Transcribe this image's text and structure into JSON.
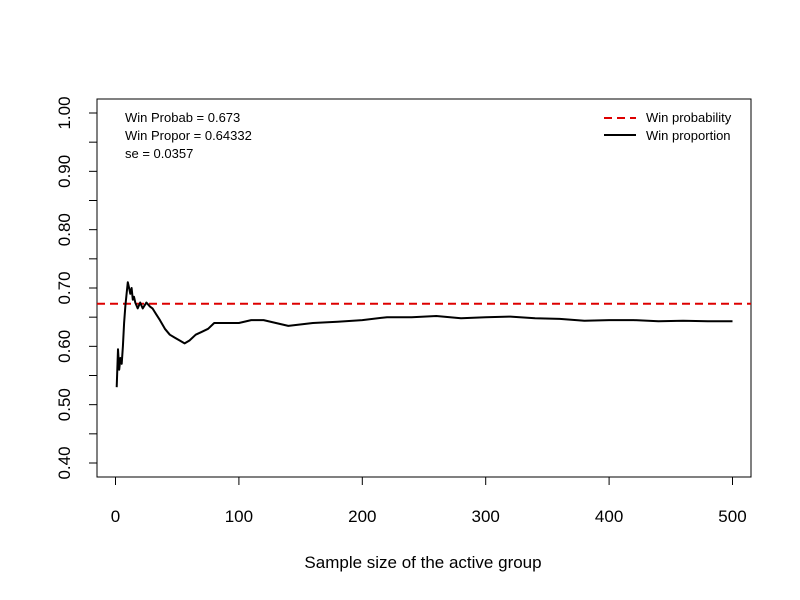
{
  "chart_data": {
    "type": "line",
    "xlabel": "Sample size of the active group",
    "ylabel": "",
    "xlim": [
      -15,
      515
    ],
    "ylim": [
      0.376,
      1.024
    ],
    "x_ticks": [
      0,
      100,
      200,
      300,
      400,
      500
    ],
    "x_tick_labels": [
      "0",
      "100",
      "200",
      "300",
      "400",
      "500"
    ],
    "y_ticks": [
      0.4,
      0.45,
      0.5,
      0.55,
      0.6,
      0.65,
      0.7,
      0.75,
      0.8,
      0.85,
      0.9,
      0.95,
      1.0
    ],
    "y_tick_labels": [
      "0.40",
      "",
      "0.50",
      "",
      "0.60",
      "",
      "0.70",
      "",
      "0.80",
      "",
      "0.90",
      "",
      "1.00"
    ],
    "grid": false,
    "legend_position": "top-right",
    "annotations": [
      "Win Probab = 0.673",
      "Win Propor = 0.64332",
      "se = 0.0357"
    ],
    "series": [
      {
        "name": "Win probability",
        "style": "dashed",
        "color": "#dd0000",
        "x": [
          -15,
          515
        ],
        "y": [
          0.673,
          0.673
        ]
      },
      {
        "name": "Win proportion",
        "style": "solid",
        "color": "#000000",
        "x": [
          1,
          2,
          3,
          4,
          5,
          6,
          7,
          8,
          9,
          10,
          11,
          12,
          13,
          14,
          15,
          16,
          17,
          18,
          20,
          22,
          25,
          28,
          30,
          33,
          36,
          40,
          44,
          48,
          52,
          56,
          60,
          65,
          70,
          75,
          80,
          90,
          100,
          110,
          120,
          130,
          140,
          160,
          180,
          200,
          220,
          240,
          260,
          280,
          300,
          320,
          340,
          360,
          380,
          400,
          420,
          440,
          460,
          480,
          500
        ],
        "y": [
          0.53,
          0.595,
          0.56,
          0.58,
          0.57,
          0.6,
          0.64,
          0.67,
          0.69,
          0.71,
          0.7,
          0.69,
          0.7,
          0.68,
          0.685,
          0.675,
          0.67,
          0.665,
          0.675,
          0.665,
          0.675,
          0.668,
          0.665,
          0.655,
          0.645,
          0.63,
          0.62,
          0.615,
          0.61,
          0.605,
          0.61,
          0.62,
          0.625,
          0.63,
          0.64,
          0.64,
          0.64,
          0.645,
          0.645,
          0.64,
          0.635,
          0.64,
          0.642,
          0.645,
          0.65,
          0.65,
          0.652,
          0.648,
          0.65,
          0.651,
          0.648,
          0.647,
          0.644,
          0.645,
          0.645,
          0.643,
          0.644,
          0.643,
          0.643
        ]
      }
    ]
  }
}
